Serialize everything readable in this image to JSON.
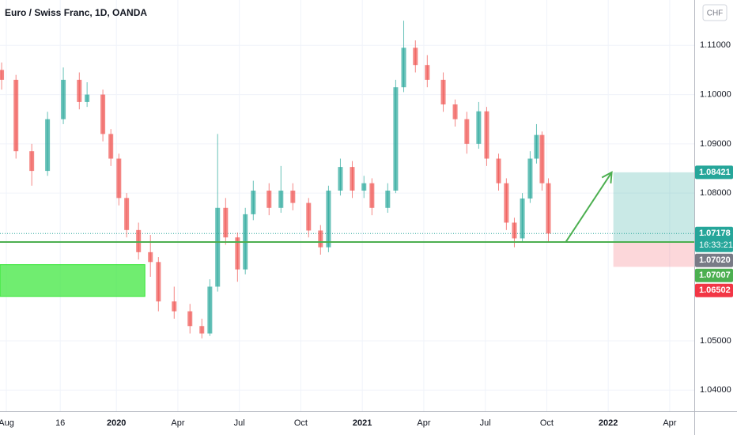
{
  "chart_data": {
    "type": "candlestick",
    "title": "Euro / Swiss Franc, 1D, OANDA",
    "currency_label": "CHF",
    "countdown": "16:33:21",
    "up_color": "#26a69a",
    "down_color": "#ef5350",
    "grid": true,
    "xlim": [
      -0.68,
      33.2
    ],
    "ylim": [
      1.0357,
      1.1192
    ],
    "xticks": [
      {
        "value": -0.37,
        "label": "Aug"
      },
      {
        "value": 2.26,
        "label": "16"
      },
      {
        "value": 5,
        "label": "2020"
      },
      {
        "value": 8,
        "label": "Apr"
      },
      {
        "value": 11,
        "label": "Jul"
      },
      {
        "value": 14,
        "label": "Oct"
      },
      {
        "value": 17,
        "label": "2021"
      },
      {
        "value": 20,
        "label": "Apr"
      },
      {
        "value": 23,
        "label": "Jul"
      },
      {
        "value": 26,
        "label": "Oct"
      },
      {
        "value": 29,
        "label": "2022"
      },
      {
        "value": 32,
        "label": "Apr"
      }
    ],
    "yticks": [
      {
        "value": 1.04,
        "label": "1.04000"
      },
      {
        "value": 1.05,
        "label": "1.05000"
      },
      {
        "value": 1.08,
        "label": "1.08000"
      },
      {
        "value": 1.09,
        "label": "1.09000"
      },
      {
        "value": 1.1,
        "label": "1.10000"
      },
      {
        "value": 1.11,
        "label": "1.11000"
      }
    ],
    "x": [
      -0.6,
      0.1,
      0.87,
      1.64,
      2.41,
      3.19,
      3.57,
      4.34,
      4.73,
      5.12,
      5.5,
      6.08,
      6.66,
      7.05,
      7.82,
      8.59,
      9.17,
      9.56,
      9.94,
      10.33,
      10.91,
      11.29,
      11.68,
      12.45,
      13.03,
      13.61,
      14.38,
      14.96,
      15.35,
      15.93,
      16.51,
      17.08,
      17.47,
      18.24,
      18.63,
      19.02,
      19.59,
      20.17,
      20.95,
      21.53,
      22.1,
      22.68,
      23.07,
      23.65,
      24.03,
      24.42,
      24.81,
      25.19,
      25.5,
      25.77,
      26.08
    ],
    "open": [
      1.105,
      1.103,
      1.0885,
      1.0845,
      1.095,
      1.103,
      1.0985,
      1.1,
      1.092,
      1.087,
      1.079,
      1.0725,
      1.068,
      1.066,
      1.058,
      1.056,
      1.053,
      1.0515,
      1.061,
      1.077,
      1.071,
      1.0645,
      1.0757,
      1.0805,
      1.077,
      1.0805,
      1.078,
      1.0724,
      1.069,
      1.0805,
      1.0853,
      1.0805,
      1.082,
      1.077,
      1.0805,
      1.1015,
      1.1095,
      1.106,
      1.103,
      1.098,
      1.095,
      1.09,
      1.0966,
      1.087,
      1.082,
      1.074,
      1.0708,
      1.0789,
      1.087,
      1.0918,
      1.082
    ],
    "high": [
      1.1065,
      1.104,
      1.09,
      1.0965,
      1.1055,
      1.1045,
      1.1025,
      1.101,
      1.093,
      1.088,
      1.08,
      1.074,
      1.0715,
      1.067,
      1.061,
      1.0575,
      1.0545,
      1.0625,
      1.092,
      1.079,
      1.072,
      1.077,
      1.0825,
      1.082,
      1.0855,
      1.082,
      1.079,
      1.0735,
      1.0815,
      1.087,
      1.0865,
      1.0835,
      1.083,
      1.082,
      1.103,
      1.115,
      1.111,
      1.108,
      1.1045,
      1.099,
      1.0965,
      1.0985,
      1.0975,
      1.088,
      1.083,
      1.075,
      1.08,
      1.0885,
      1.094,
      1.0925,
      1.083
    ],
    "low": [
      1.101,
      1.087,
      1.0815,
      1.0835,
      1.094,
      1.097,
      1.0975,
      1.0905,
      1.0855,
      1.0775,
      1.071,
      1.0665,
      1.063,
      1.056,
      1.0545,
      1.0515,
      1.0505,
      1.051,
      1.06,
      1.0695,
      1.062,
      1.0635,
      1.0745,
      1.0755,
      1.076,
      1.0765,
      1.071,
      1.0675,
      1.068,
      1.0795,
      1.079,
      1.079,
      1.0755,
      1.076,
      1.08,
      1.1005,
      1.1045,
      1.1015,
      1.0965,
      1.0935,
      1.088,
      1.089,
      1.0855,
      1.0805,
      1.0725,
      1.069,
      1.07,
      1.078,
      1.086,
      1.0805,
      1.07
    ],
    "close": [
      1.103,
      1.0885,
      1.0845,
      1.095,
      1.103,
      1.0985,
      1.1,
      1.092,
      1.087,
      1.079,
      1.0725,
      1.068,
      1.066,
      1.058,
      1.056,
      1.053,
      1.0515,
      1.061,
      1.077,
      1.071,
      1.0645,
      1.0757,
      1.0805,
      1.077,
      1.0805,
      1.078,
      1.0724,
      1.069,
      1.0805,
      1.0853,
      1.0805,
      1.082,
      1.077,
      1.0805,
      1.1015,
      1.1095,
      1.106,
      1.103,
      1.098,
      1.095,
      1.09,
      1.0966,
      1.087,
      1.082,
      1.074,
      1.0708,
      1.0789,
      1.087,
      1.0918,
      1.082,
      1.07178
    ],
    "price_labels": [
      {
        "value": 1.08421,
        "label": "1.08421",
        "color": "#26a69a"
      },
      {
        "value": 1.07178,
        "label": "1.07178",
        "color": "#26a69a"
      },
      {
        "value": 1.0702,
        "label": "1.07020",
        "color": "#787b86"
      },
      {
        "value": 1.07007,
        "label": "1.07007",
        "color": "#4caf50"
      },
      {
        "value": 1.06502,
        "label": "1.06502",
        "color": "#f23645"
      }
    ],
    "zone": {
      "x": [
        -0.68,
        6.39
      ],
      "y": [
        1.05902,
        1.06547
      ],
      "color": "#33e633"
    },
    "arrow": {
      "x": [
        26.93,
        29.17
      ],
      "color": "#4caf50"
    },
    "position_x_start": 29.25
  }
}
